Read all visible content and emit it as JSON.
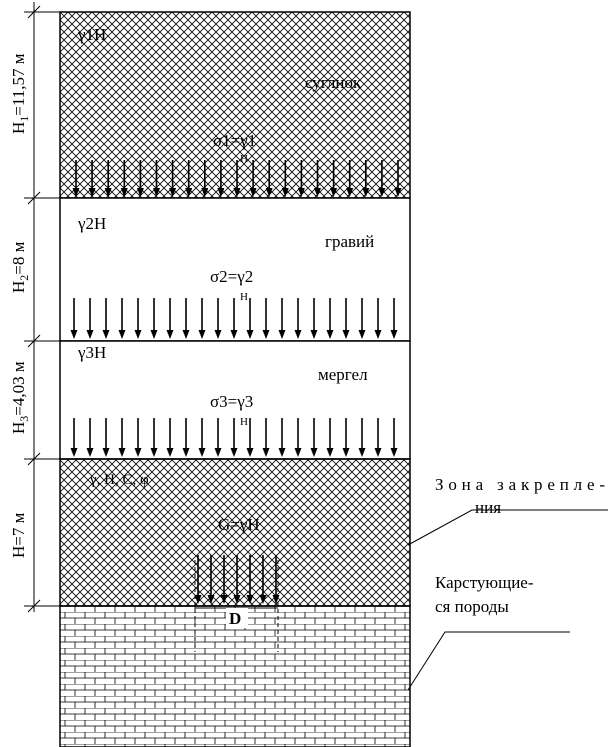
{
  "layers": [
    {
      "height_label": "H",
      "height_sub": "1",
      "height_value": "=11,57 м",
      "soil": "суглнок",
      "weight_label": "γ1H",
      "stress_label": "σ1=γ1",
      "stress_sub": "H",
      "hatch": "crosshatch"
    },
    {
      "height_label": "H",
      "height_sub": "2",
      "height_value": "=8 м",
      "soil": "гравий",
      "weight_label": "γ2H",
      "stress_label": "σ2=γ2",
      "stress_sub": "H",
      "hatch": "none"
    },
    {
      "height_label": "H",
      "height_sub": "3",
      "height_value": "=4,03 м",
      "soil": "мергел",
      "weight_label": "γ3H",
      "stress_label": "σ3=γ3",
      "stress_sub": "H",
      "hatch": "none"
    },
    {
      "height_label": "H=7 м",
      "height_sub": "",
      "height_value": "",
      "soil": "",
      "weight_label": "γ, H, C, φ",
      "stress_label": "G=γH",
      "stress_sub": "",
      "hatch": "crosshatch"
    }
  ],
  "bottom_layer": {
    "hatch": "brick"
  },
  "width_label": "D",
  "callouts": [
    {
      "line1": "Зона закрепле-",
      "line2": "ния"
    },
    {
      "line1": "Карстующие-",
      "line2": "ся породы"
    }
  ],
  "colors": {
    "ink": "#000000",
    "paper": "#ffffff"
  }
}
